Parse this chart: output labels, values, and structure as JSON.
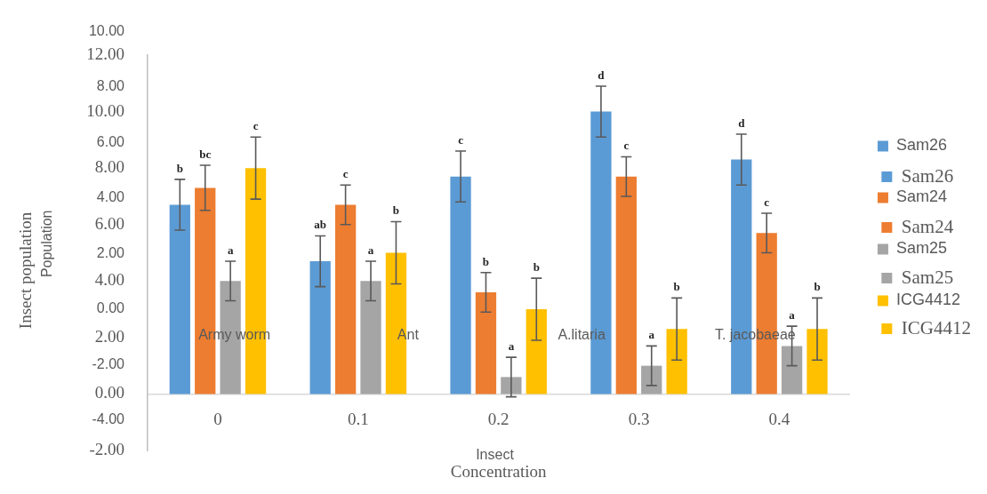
{
  "chart_data": [
    {
      "type": "bar",
      "xlabel": "Concentration",
      "ylabel": "Insect population",
      "categories": [
        "0",
        "0.1",
        "0.2",
        "0.3",
        "0.4"
      ],
      "ylim": [
        -2,
        12
      ],
      "yticks": [
        {
          "value": -2,
          "label": "-2.00"
        },
        {
          "value": 0,
          "label": "0.00"
        },
        {
          "value": 2,
          "label": "2.00"
        },
        {
          "value": 4,
          "label": "4.00"
        },
        {
          "value": 6,
          "label": "6.00"
        },
        {
          "value": 8,
          "label": "8.00"
        },
        {
          "value": 10,
          "label": "10.00"
        },
        {
          "value": 12,
          "label": "12.00"
        }
      ],
      "legend": "right",
      "series": [
        {
          "name": "Sam26",
          "color": "#5b9bd5",
          "values": [
            6.7,
            4.7,
            7.7,
            10.0,
            8.3
          ],
          "errors": [
            0.9,
            0.9,
            0.9,
            0.9,
            0.9
          ],
          "value_labels": [
            "b",
            "ab",
            "c",
            "d",
            "d"
          ]
        },
        {
          "name": "Sam24",
          "color": "#ed7d31",
          "values": [
            7.3,
            6.7,
            3.6,
            7.7,
            5.7
          ],
          "errors": [
            0.8,
            0.7,
            0.7,
            0.7,
            0.7
          ],
          "value_labels": [
            "bc",
            "c",
            "b",
            "c",
            "c"
          ]
        },
        {
          "name": "Sam25",
          "color": "#a5a5a5",
          "values": [
            4.0,
            4.0,
            0.6,
            1.0,
            1.7
          ],
          "errors": [
            0.7,
            0.7,
            0.7,
            0.7,
            0.7
          ],
          "value_labels": [
            "a",
            "a",
            "a",
            "a",
            "a"
          ]
        },
        {
          "name": "ICG4412",
          "color": "#ffc000",
          "values": [
            8.0,
            5.0,
            3.0,
            2.3,
            2.3
          ],
          "errors": [
            1.1,
            1.1,
            1.1,
            1.1,
            1.1
          ],
          "value_labels": [
            "c",
            "b",
            "b",
            "b",
            "b"
          ]
        }
      ]
    },
    {
      "type": "bar",
      "xlabel": "Insect",
      "ylabel": "Population",
      "categories": [
        "Army worm",
        "Ant",
        "A.litaria",
        "T. jacobaeae"
      ],
      "ylim": [
        -4,
        10
      ],
      "yticks": [
        {
          "value": -4,
          "label": "-4.00"
        },
        {
          "value": -2,
          "label": "-2.00"
        },
        {
          "value": 0,
          "label": "0.00"
        },
        {
          "value": 2,
          "label": "2.00"
        },
        {
          "value": 4,
          "label": "4.00"
        },
        {
          "value": 6,
          "label": "6.00"
        },
        {
          "value": 8,
          "label": "8.00"
        },
        {
          "value": 10,
          "label": "10.00"
        }
      ],
      "legend": "right",
      "series": [
        {
          "name": "Sam26",
          "color": "#5b9bd5",
          "values": [
            null,
            null,
            null,
            null
          ]
        },
        {
          "name": "Sam24",
          "color": "#ed7d31",
          "values": [
            null,
            null,
            null,
            null
          ]
        },
        {
          "name": "Sam25",
          "color": "#a5a5a5",
          "values": [
            null,
            null,
            null,
            null
          ]
        },
        {
          "name": "ICG4412",
          "color": "#ffc000",
          "values": [
            null,
            null,
            null,
            null
          ]
        }
      ]
    }
  ]
}
